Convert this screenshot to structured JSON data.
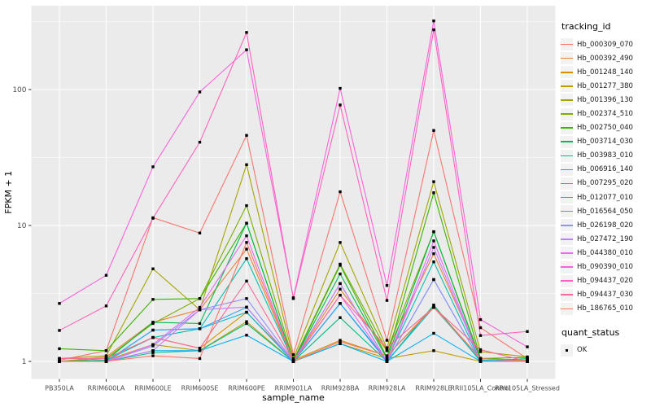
{
  "chart_data": {
    "type": "line",
    "title": "",
    "xlabel": "sample_name",
    "ylabel": "FPKM + 1",
    "y_scale": "log10",
    "y_ticks": [
      "1",
      "10",
      "100"
    ],
    "y_tick_values": [
      1,
      10,
      100
    ],
    "y_minor_values": [
      3.162,
      31.62,
      316.2
    ],
    "ylim": [
      0.75,
      340
    ],
    "grid": true,
    "panel_background": "#EBEBEB",
    "gridline_color": "#FFFFFF",
    "point_marker": "small black square",
    "legend_position": "right",
    "legend_title": "tracking_id",
    "legend2_title": "quant_status",
    "legend2_items": [
      {
        "label": "OK",
        "marker": "black-square"
      }
    ],
    "categories": [
      "PB350LA",
      "RRIM600LA",
      "RRIM600LE",
      "RRIM600SE",
      "RRIM600PE",
      "RRIM901LA",
      "RRIM928BA",
      "RRIM928LA",
      "RRIM928LE",
      "RRII105LA_Control",
      "RRII105LA_Stressed"
    ],
    "series": [
      {
        "name": "Hb_000309_070",
        "color": "#F8766D",
        "values": [
          1.02,
          1.2,
          11.4,
          8.8,
          46,
          1.12,
          17.7,
          1.43,
          50,
          1.77,
          1.05
        ]
      },
      {
        "name": "Hb_000392_490",
        "color": "#EA8331",
        "values": [
          1.0,
          1.08,
          1.94,
          2.4,
          6.7,
          1.0,
          3.4,
          1.2,
          6.2,
          1.05,
          1.0
        ]
      },
      {
        "name": "Hb_001248_140",
        "color": "#D89000",
        "values": [
          1.05,
          1.05,
          1.5,
          1.25,
          2.3,
          1.02,
          1.43,
          1.1,
          2.55,
          1.05,
          1.02
        ]
      },
      {
        "name": "Hb_001277_380",
        "color": "#C09B00",
        "values": [
          1.0,
          1.02,
          1.33,
          1.2,
          1.96,
          1.0,
          1.35,
          1.05,
          1.2,
          1.0,
          1.0
        ]
      },
      {
        "name": "Hb_001396_130",
        "color": "#A3A500",
        "values": [
          1.05,
          1.1,
          4.8,
          2.4,
          28,
          1.05,
          7.5,
          1.25,
          21,
          1.18,
          1.08
        ]
      },
      {
        "name": "Hb_002374_510",
        "color": "#7CAE00",
        "values": [
          1.0,
          1.05,
          1.9,
          2.9,
          14,
          1.02,
          5.2,
          1.2,
          9.0,
          1.05,
          1.02
        ]
      },
      {
        "name": "Hb_002750_040",
        "color": "#39B600",
        "values": [
          1.24,
          1.2,
          2.86,
          2.9,
          10.4,
          1.0,
          5.1,
          1.07,
          17.4,
          1.05,
          1.07
        ]
      },
      {
        "name": "Hb_003714_030",
        "color": "#00BB4E",
        "values": [
          1.0,
          1.02,
          1.94,
          1.9,
          10.4,
          1.0,
          4.4,
          1.05,
          9.0,
          1.02,
          1.0
        ]
      },
      {
        "name": "Hb_003983_010",
        "color": "#00C087",
        "values": [
          1.0,
          1.0,
          1.16,
          1.2,
          1.9,
          1.0,
          2.1,
          1.0,
          2.6,
          1.0,
          1.05
        ]
      },
      {
        "name": "Hb_006916_140",
        "color": "#00C0B4",
        "values": [
          1.0,
          1.02,
          1.5,
          1.74,
          5.7,
          1.0,
          2.67,
          1.02,
          5.4,
          1.0,
          1.0
        ]
      },
      {
        "name": "Hb_007295_020",
        "color": "#00BCD8",
        "values": [
          1.0,
          1.0,
          1.7,
          1.74,
          2.3,
          1.0,
          2.67,
          1.0,
          2.5,
          1.02,
          1.0
        ]
      },
      {
        "name": "Hb_012077_010",
        "color": "#00B0F6",
        "values": [
          1.0,
          1.0,
          1.2,
          1.2,
          1.56,
          1.0,
          1.35,
          1.0,
          1.61,
          1.0,
          1.0
        ]
      },
      {
        "name": "Hb_016564_050",
        "color": "#35A2FF",
        "values": [
          1.0,
          1.0,
          1.7,
          1.74,
          2.5,
          1.0,
          2.67,
          1.0,
          4.0,
          1.0,
          1.0
        ]
      },
      {
        "name": "Hb_026198_020",
        "color": "#9590FF",
        "values": [
          1.0,
          1.0,
          1.3,
          2.4,
          2.9,
          1.0,
          3.74,
          1.0,
          4.0,
          1.0,
          1.0
        ]
      },
      {
        "name": "Hb_027472_190",
        "color": "#C77CFF",
        "values": [
          1.0,
          1.0,
          1.2,
          2.4,
          2.51,
          1.0,
          3.74,
          1.0,
          6.9,
          1.0,
          1.0
        ]
      },
      {
        "name": "Hb_044380_010",
        "color": "#E76BF3",
        "values": [
          1.0,
          1.0,
          1.33,
          2.5,
          8.4,
          1.0,
          3.07,
          1.0,
          7.7,
          1.0,
          1.0
        ]
      },
      {
        "name": "Hb_090390_010",
        "color": "#FA62DB",
        "values": [
          2.67,
          4.3,
          27,
          96,
          196,
          2.94,
          102,
          3.62,
          320,
          2.03,
          1.28
        ]
      },
      {
        "name": "Hb_094437_020",
        "color": "#FF62BC",
        "values": [
          1.69,
          2.56,
          11.3,
          41,
          263,
          2.9,
          77,
          2.81,
          275,
          1.55,
          1.66
        ]
      },
      {
        "name": "Hb_094437_030",
        "color": "#FF6A98",
        "values": [
          1.05,
          1.05,
          1.5,
          1.25,
          3.9,
          1.0,
          3.07,
          1.26,
          2.5,
          1.22,
          1.0
        ]
      },
      {
        "name": "Hb_186765_010",
        "color": "#FE7668",
        "values": [
          1.0,
          1.0,
          1.1,
          1.05,
          7.5,
          1.0,
          1.4,
          1.1,
          2.5,
          1.05,
          1.0
        ]
      }
    ]
  }
}
